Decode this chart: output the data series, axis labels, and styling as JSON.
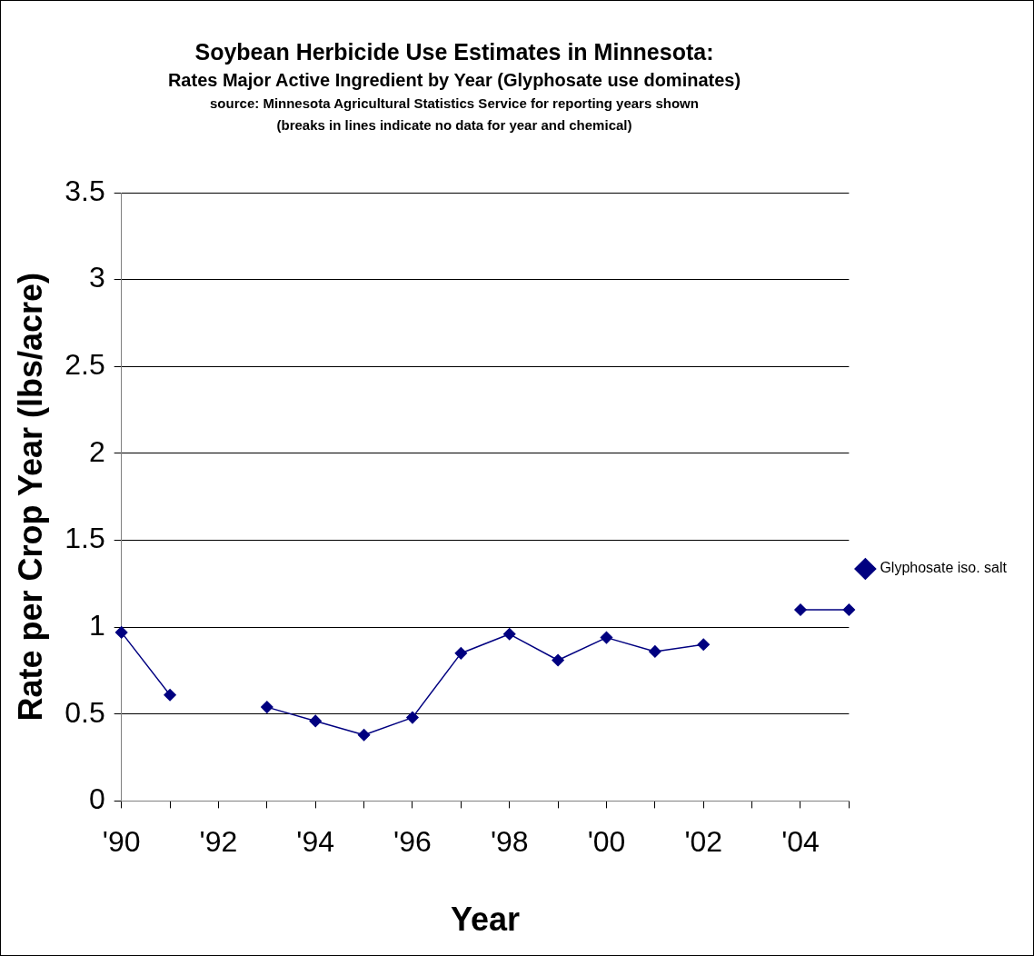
{
  "chart_data": {
    "type": "line",
    "title": "Soybean Herbicide Use Estimates in Minnesota:",
    "subtitle": "Rates Major Active Ingredient by Year (Glyphosate use dominates)",
    "annotations": [
      "source:  Minnesota Agricultural Statistics Service for reporting years shown",
      "(breaks in lines indicate no data for year and chemical)"
    ],
    "xlabel": "Year",
    "ylabel": "Rate per Crop Year (lbs/acre)",
    "categories": [
      "'90",
      null,
      "'92",
      null,
      "'94",
      null,
      "'96",
      null,
      "'98",
      null,
      "'00",
      null,
      "'02",
      null,
      "'04",
      null
    ],
    "series": [
      {
        "name": "Glyphosate iso. salt",
        "color": "#000080",
        "values": [
          0.97,
          0.61,
          null,
          0.54,
          0.46,
          0.38,
          0.48,
          0.85,
          0.96,
          0.81,
          0.94,
          0.86,
          0.9,
          null,
          1.1,
          1.1
        ]
      }
    ],
    "ylim": [
      0,
      3.5
    ],
    "yticks": [
      0,
      0.5,
      1,
      1.5,
      2,
      2.5,
      3,
      3.5
    ],
    "grid": "y",
    "legend": "right",
    "marker": "diamond",
    "line_style": "solid"
  }
}
